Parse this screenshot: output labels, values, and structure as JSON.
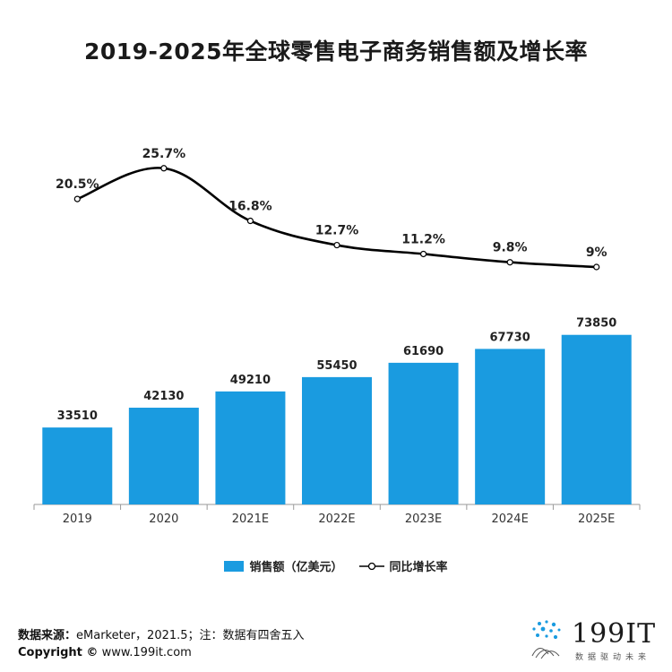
{
  "chart_data": {
    "type": "bar+line",
    "title": "2019-2025年全球零售电子商务销售额及增长率",
    "categories": [
      "2019",
      "2020",
      "2021E",
      "2022E",
      "2023E",
      "2024E",
      "2025E"
    ],
    "series": [
      {
        "name": "销售额（亿美元）",
        "type": "bar",
        "values": [
          33510,
          42130,
          49210,
          55450,
          61690,
          67730,
          73850
        ],
        "color": "#1a9be0"
      },
      {
        "name": "同比增长率",
        "type": "line",
        "values": [
          20.5,
          25.7,
          16.8,
          12.7,
          11.2,
          9.8,
          9.0
        ],
        "labels": [
          "20.5%",
          "25.7%",
          "16.8%",
          "12.7%",
          "11.2%",
          "9.8%",
          "9%"
        ],
        "color": "#000000"
      }
    ],
    "grid": false,
    "legend_position": "bottom"
  },
  "footer": {
    "source_label": "数据来源：",
    "source_text": "eMarketer，2021.5；注：数据有四舍五入",
    "copyright_label": "Copyright ©",
    "copyright_text": "www.199it.com"
  },
  "logo": {
    "brand": "199IT",
    "tagline": "数据驱动未来"
  }
}
